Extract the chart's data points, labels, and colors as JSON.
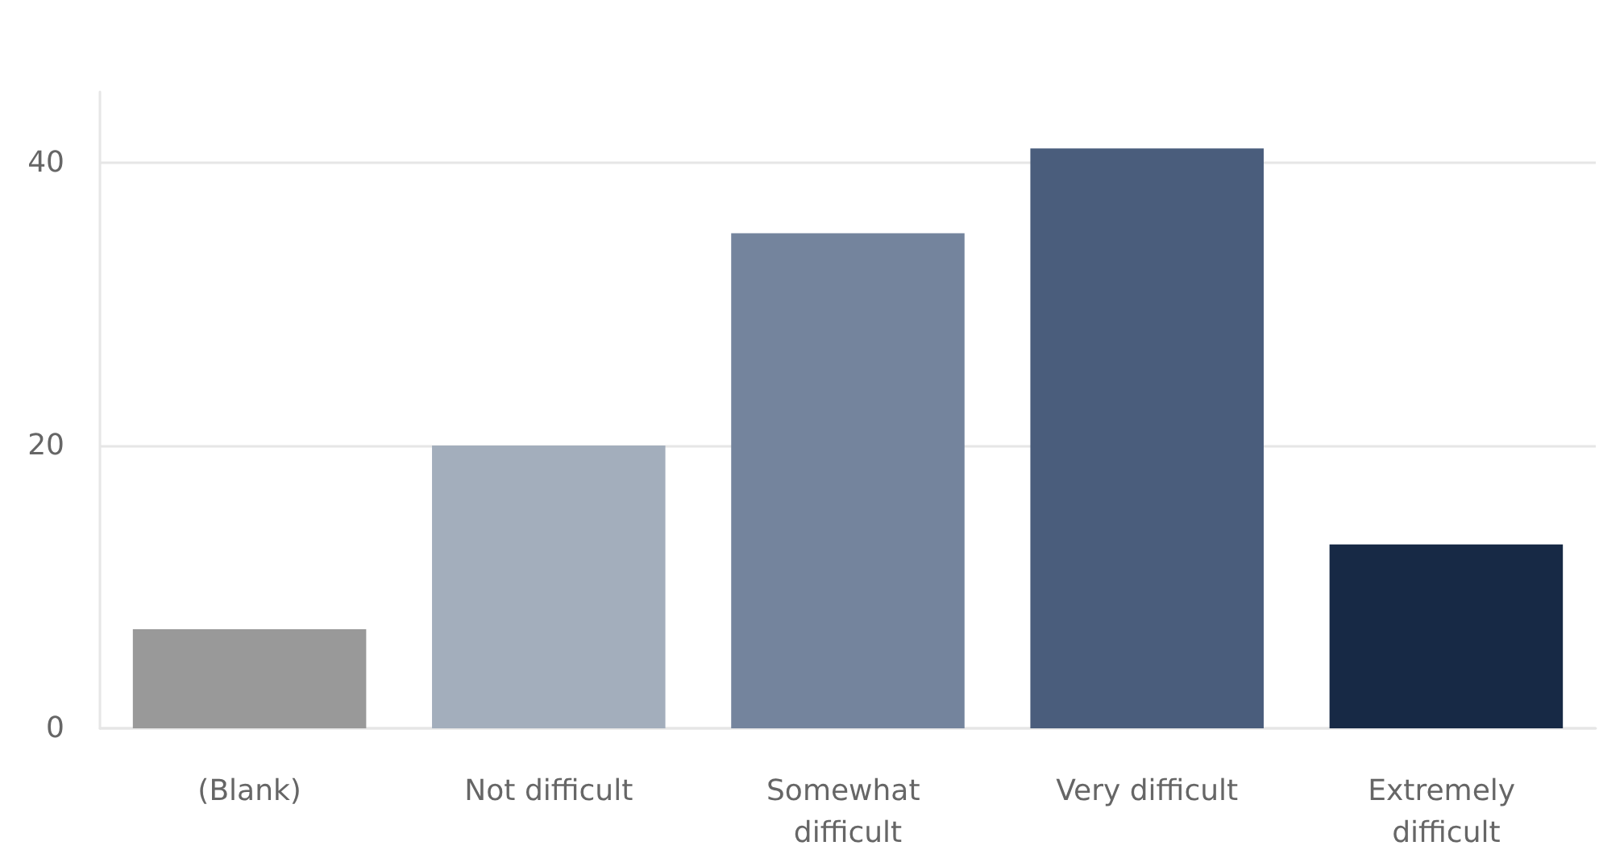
{
  "chart_data": {
    "type": "bar",
    "categories": [
      "(Blank)",
      "Not difficult",
      "Somewhat difficult",
      "Very difficult",
      "Extremely difficult"
    ],
    "values": [
      7,
      20,
      35,
      41,
      13
    ],
    "colors": [
      "#999999",
      "#a3aebc",
      "#74849d",
      "#4a5d7c",
      "#172945"
    ],
    "ylim": [
      0,
      45
    ],
    "yticks": [
      0,
      20,
      40
    ],
    "grid": "y"
  }
}
